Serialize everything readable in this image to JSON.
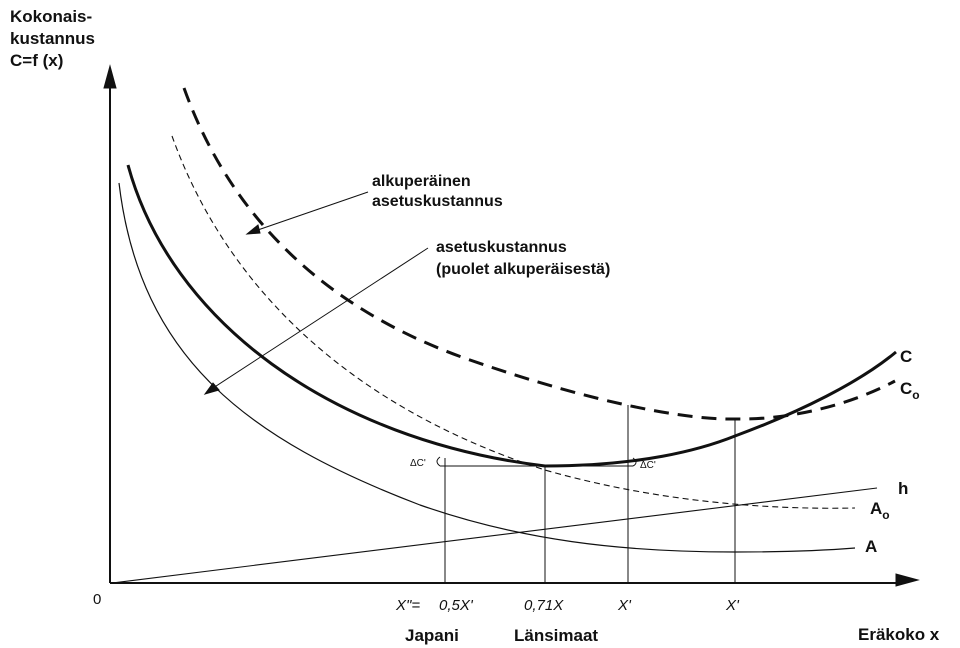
{
  "y_axis_title": [
    "Kokonais-",
    "kustannus",
    "C=f (x)"
  ],
  "x_axis_title": "Eräkoko x",
  "origin_label": "0",
  "annotations": {
    "original_setup": [
      "alkuperäinen",
      "asetuskustannus"
    ],
    "half_setup": [
      "asetuskustannus",
      "(puolet alkuperäisestä)"
    ]
  },
  "curve_labels": {
    "C": "C",
    "C0": "C",
    "C0_sub": "o",
    "h": "h",
    "A0": "A",
    "A0_sub": "o",
    "A": "A"
  },
  "delta_labels": {
    "left": "ΔC'",
    "right": "ΔC'"
  },
  "x_ticks": {
    "x_double_prime": "X\"=",
    "half": "0,5X'",
    "seventy_one": "0,71X",
    "x_prime_1": "X'",
    "x_prime_2": "X'"
  },
  "groups": {
    "japan": "Japani",
    "west": "Länsimaat"
  },
  "colors": {
    "ink": "#111111"
  }
}
